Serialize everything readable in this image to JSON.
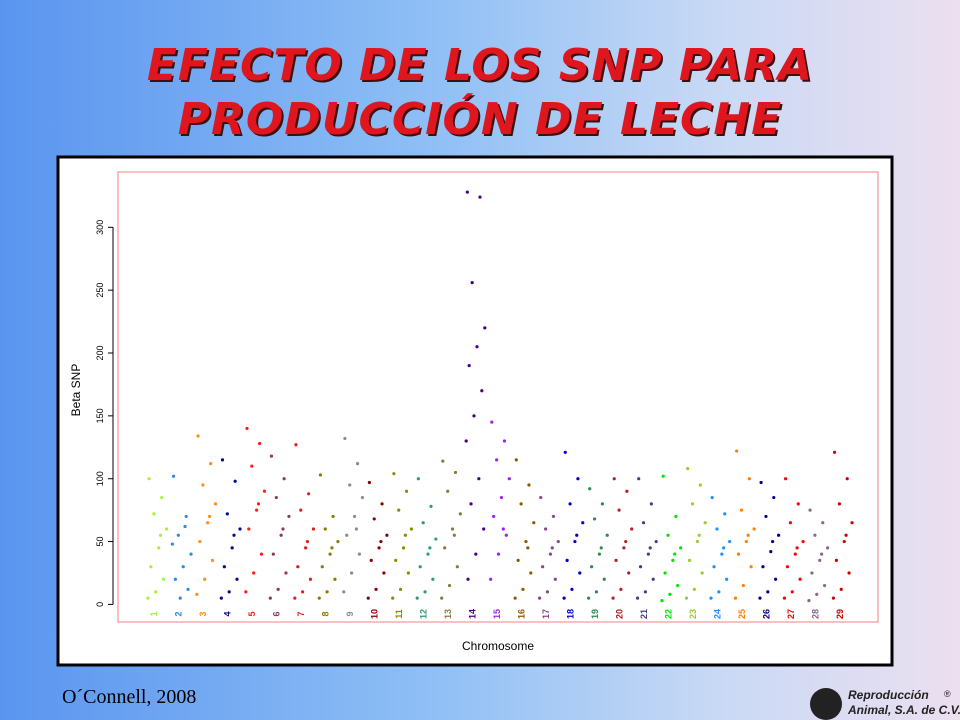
{
  "slide": {
    "title": [
      "EFECTO DE LOS SNP PARA",
      "PRODUCCIÓN DE LECHE"
    ],
    "citation": "O´Connell, 2008",
    "logo": [
      "Reproducción",
      "Animal, S.A. de C.V.",
      "®"
    ]
  },
  "chart_data": {
    "type": "scatter",
    "x_label": "Chromosome",
    "y_label": "Beta SNP",
    "categories": [
      "1",
      "2",
      "3",
      "4",
      "5",
      "6",
      "7",
      "8",
      "9",
      "10",
      "11",
      "12",
      "13",
      "14",
      "15",
      "16",
      "17",
      "18",
      "19",
      "20",
      "21",
      "22",
      "23",
      "24",
      "25",
      "26",
      "27",
      "28",
      "29"
    ],
    "colors": [
      "#a6f03c",
      "#2a8ae6",
      "#ff8c1a",
      "#0a0a80",
      "#ff1a1a",
      "#8b3a62",
      "#e01e1e",
      "#8b7a00",
      "#8c8c8c",
      "#8b0000",
      "#8b8b00",
      "#2e9e6e",
      "#8b7a3a",
      "#4b0082",
      "#a020f0",
      "#8b5a00",
      "#8b4789",
      "#0000cd",
      "#2e8b57",
      "#b22222",
      "#483d8b",
      "#00e600",
      "#9acd32",
      "#1e90ff",
      "#ff7f00",
      "#00008b",
      "#ff0000",
      "#8b668b",
      "#cd0000"
    ],
    "values": [
      [
        100,
        85,
        72,
        60,
        45,
        30,
        20,
        10,
        5,
        55
      ],
      [
        102,
        70,
        55,
        40,
        30,
        20,
        12,
        5,
        48,
        62
      ],
      [
        134,
        112,
        95,
        80,
        65,
        50,
        35,
        20,
        8,
        70
      ],
      [
        115,
        98,
        72,
        60,
        45,
        30,
        20,
        10,
        5,
        55
      ],
      [
        140,
        128,
        110,
        90,
        75,
        60,
        40,
        25,
        10,
        80
      ],
      [
        118,
        100,
        85,
        70,
        55,
        40,
        25,
        12,
        5,
        60
      ],
      [
        127,
        88,
        75,
        60,
        45,
        30,
        20,
        10,
        5,
        50
      ],
      [
        103,
        70,
        60,
        50,
        40,
        30,
        20,
        10,
        5,
        45
      ],
      [
        132,
        112,
        95,
        85,
        70,
        55,
        40,
        25,
        10,
        60
      ],
      [
        97,
        80,
        68,
        55,
        45,
        35,
        25,
        12,
        5,
        50
      ],
      [
        104,
        90,
        75,
        60,
        45,
        35,
        25,
        12,
        5,
        55
      ],
      [
        100,
        78,
        65,
        52,
        40,
        30,
        20,
        10,
        5,
        45
      ],
      [
        114,
        105,
        90,
        72,
        60,
        45,
        30,
        15,
        5,
        55
      ],
      [
        328,
        324,
        256,
        220,
        205,
        190,
        170,
        150,
        130,
        100,
        80,
        60,
        40,
        20
      ],
      [
        145,
        130,
        115,
        100,
        85,
        70,
        55,
        40,
        20,
        60
      ],
      [
        115,
        95,
        80,
        65,
        50,
        35,
        25,
        12,
        5,
        45
      ],
      [
        85,
        70,
        60,
        50,
        40,
        30,
        20,
        10,
        5,
        45
      ],
      [
        121,
        100,
        80,
        65,
        50,
        35,
        25,
        12,
        5,
        55
      ],
      [
        92,
        80,
        68,
        55,
        40,
        30,
        20,
        10,
        5,
        45
      ],
      [
        100,
        90,
        75,
        60,
        45,
        35,
        25,
        12,
        5,
        50
      ],
      [
        100,
        80,
        65,
        50,
        40,
        30,
        20,
        10,
        5,
        45
      ],
      [
        102,
        70,
        55,
        45,
        35,
        25,
        15,
        8,
        3,
        40
      ],
      [
        108,
        95,
        80,
        65,
        50,
        35,
        25,
        12,
        5,
        55
      ],
      [
        85,
        72,
        60,
        50,
        40,
        30,
        20,
        10,
        5,
        45
      ],
      [
        122,
        100,
        75,
        60,
        50,
        40,
        30,
        15,
        5,
        55
      ],
      [
        97,
        85,
        70,
        55,
        42,
        30,
        20,
        10,
        5,
        50
      ],
      [
        100,
        80,
        65,
        50,
        40,
        30,
        20,
        10,
        5,
        45
      ],
      [
        75,
        65,
        55,
        45,
        35,
        25,
        15,
        8,
        3,
        40
      ],
      [
        121,
        100,
        80,
        65,
        50,
        35,
        25,
        12,
        5,
        55
      ]
    ],
    "ylim": [
      -14,
      344
    ],
    "yticks": [
      0,
      50,
      100,
      150,
      200,
      250,
      300
    ]
  }
}
